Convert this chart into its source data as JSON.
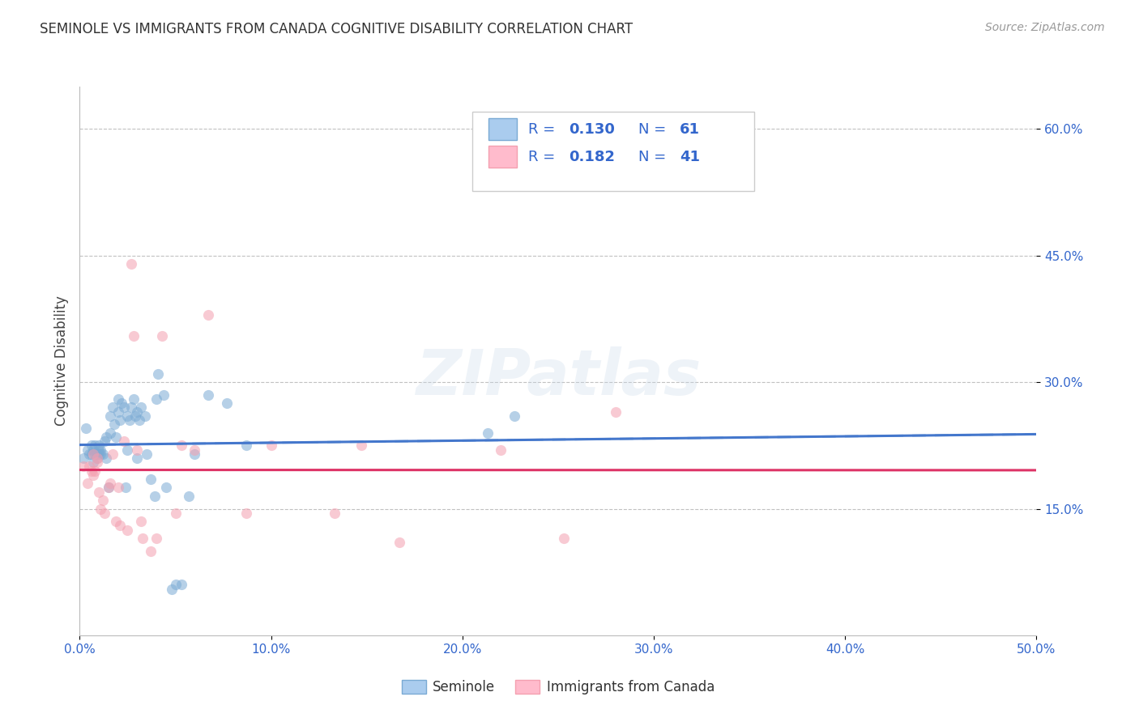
{
  "title": "SEMINOLE VS IMMIGRANTS FROM CANADA COGNITIVE DISABILITY CORRELATION CHART",
  "source": "Source: ZipAtlas.com",
  "ylabel": "Cognitive Disability",
  "xlim": [
    0.0,
    0.5
  ],
  "ylim": [
    0.0,
    0.65
  ],
  "xticks": [
    0.0,
    0.1,
    0.2,
    0.3,
    0.4,
    0.5
  ],
  "xtick_labels": [
    "0.0%",
    "10.0%",
    "20.0%",
    "30.0%",
    "40.0%",
    "50.0%"
  ],
  "yticks": [
    0.15,
    0.3,
    0.45,
    0.6
  ],
  "ytick_labels": [
    "15.0%",
    "30.0%",
    "45.0%",
    "60.0%"
  ],
  "grid_color": "#bbbbbb",
  "background_color": "#ffffff",
  "seminole_color": "#7aaad4",
  "canada_color": "#f4a0b0",
  "seminole_R": 0.13,
  "seminole_N": 61,
  "canada_R": 0.182,
  "canada_N": 41,
  "legend_color": "#3366cc",
  "watermark": "ZIPatlas",
  "seminole_scatter_x": [
    0.002,
    0.003,
    0.004,
    0.005,
    0.006,
    0.006,
    0.007,
    0.007,
    0.008,
    0.008,
    0.009,
    0.009,
    0.01,
    0.01,
    0.01,
    0.011,
    0.011,
    0.012,
    0.013,
    0.014,
    0.014,
    0.015,
    0.016,
    0.016,
    0.017,
    0.018,
    0.019,
    0.02,
    0.02,
    0.021,
    0.022,
    0.023,
    0.024,
    0.025,
    0.025,
    0.026,
    0.027,
    0.028,
    0.029,
    0.03,
    0.03,
    0.031,
    0.032,
    0.034,
    0.035,
    0.037,
    0.039,
    0.04,
    0.041,
    0.044,
    0.045,
    0.048,
    0.05,
    0.053,
    0.057,
    0.06,
    0.067,
    0.077,
    0.087,
    0.213,
    0.227
  ],
  "seminole_scatter_y": [
    0.21,
    0.245,
    0.22,
    0.215,
    0.215,
    0.225,
    0.205,
    0.22,
    0.215,
    0.225,
    0.21,
    0.215,
    0.22,
    0.215,
    0.225,
    0.215,
    0.22,
    0.215,
    0.23,
    0.21,
    0.235,
    0.175,
    0.24,
    0.26,
    0.27,
    0.25,
    0.235,
    0.28,
    0.265,
    0.255,
    0.275,
    0.27,
    0.175,
    0.22,
    0.26,
    0.255,
    0.27,
    0.28,
    0.26,
    0.21,
    0.265,
    0.255,
    0.27,
    0.26,
    0.215,
    0.185,
    0.165,
    0.28,
    0.31,
    0.285,
    0.175,
    0.055,
    0.06,
    0.06,
    0.165,
    0.215,
    0.285,
    0.275,
    0.225,
    0.24,
    0.26
  ],
  "canada_scatter_x": [
    0.002,
    0.004,
    0.005,
    0.006,
    0.007,
    0.007,
    0.008,
    0.009,
    0.009,
    0.01,
    0.011,
    0.012,
    0.013,
    0.015,
    0.016,
    0.017,
    0.019,
    0.02,
    0.021,
    0.023,
    0.025,
    0.027,
    0.028,
    0.03,
    0.032,
    0.033,
    0.037,
    0.04,
    0.043,
    0.05,
    0.053,
    0.06,
    0.067,
    0.087,
    0.1,
    0.133,
    0.147,
    0.167,
    0.22,
    0.253,
    0.28
  ],
  "canada_scatter_y": [
    0.2,
    0.18,
    0.2,
    0.195,
    0.19,
    0.215,
    0.195,
    0.205,
    0.21,
    0.17,
    0.15,
    0.16,
    0.145,
    0.175,
    0.18,
    0.215,
    0.135,
    0.175,
    0.13,
    0.23,
    0.125,
    0.44,
    0.355,
    0.22,
    0.135,
    0.115,
    0.1,
    0.115,
    0.355,
    0.145,
    0.225,
    0.22,
    0.38,
    0.145,
    0.225,
    0.145,
    0.225,
    0.11,
    0.22,
    0.115,
    0.265
  ]
}
